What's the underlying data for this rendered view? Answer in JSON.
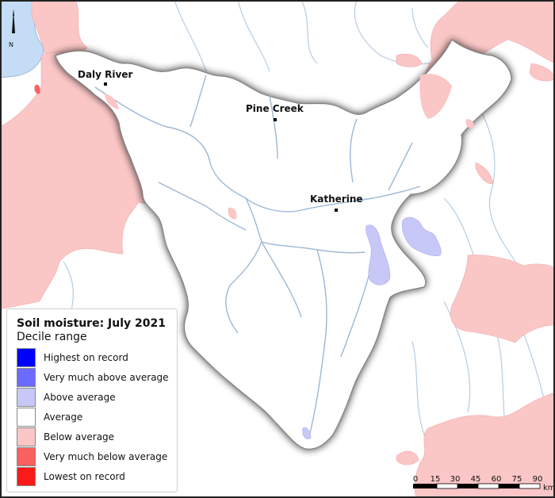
{
  "legend": {
    "title": "Soil moisture: July 2021",
    "subtitle": "Decile range",
    "items": [
      {
        "label": "Highest on record",
        "color": "#0000ff"
      },
      {
        "label": "Very much above average",
        "color": "#6b6bff"
      },
      {
        "label": "Above average",
        "color": "#c8c8f8"
      },
      {
        "label": "Average",
        "color": "#ffffff"
      },
      {
        "label": "Below average",
        "color": "#fbc6c6"
      },
      {
        "label": "Very much below average",
        "color": "#fa6060"
      },
      {
        "label": "Lowest on record",
        "color": "#fb1a1a"
      }
    ]
  },
  "towns": [
    {
      "name": "Daly River"
    },
    {
      "name": "Pine Creek"
    },
    {
      "name": "Katherine"
    }
  ],
  "scale_bar": {
    "ticks": [
      "0",
      "15",
      "30",
      "45",
      "60",
      "75",
      "90"
    ],
    "unit": "km"
  },
  "north_arrow": {
    "label": "N"
  },
  "colors": {
    "water": "#c4dcf5",
    "river": "#a9c3dc",
    "below_average": "#fbc6c6",
    "above_average": "#c8c8f8",
    "very_much_below": "#fa6060"
  }
}
